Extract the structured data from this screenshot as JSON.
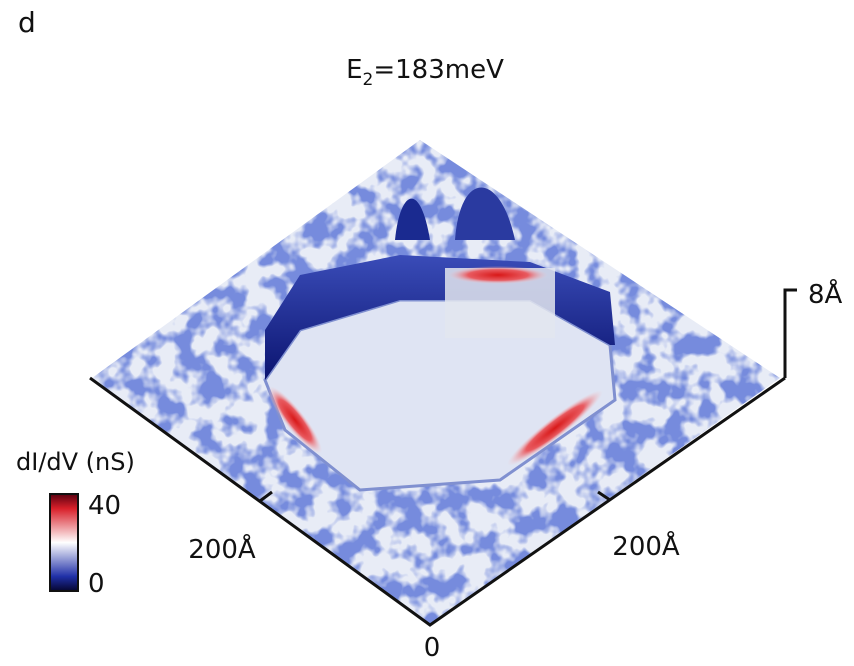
{
  "panel_label": "d",
  "title": {
    "base": "E",
    "subscript": "2",
    "rest": "=183meV"
  },
  "colorbar": {
    "label": "dI/dV (nS)",
    "max_label": "40",
    "min_label": "0"
  },
  "axes": {
    "left_tick_label": "200Å",
    "right_tick_label": "200Å",
    "origin_label": "0",
    "height_scale_label": "8Å"
  }
}
